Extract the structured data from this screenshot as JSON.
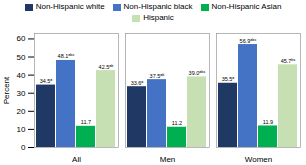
{
  "chart_data": {
    "type": "bar",
    "categories": [
      "All",
      "Men",
      "Women"
    ],
    "series": [
      {
        "name": "Non-Hispanic white",
        "color": "#1f3864",
        "values": [
          34.5,
          33.6,
          35.5
        ],
        "value_labels": [
          "34.5ᵃ",
          "33.6ᵃ",
          "35.5ᵃ"
        ]
      },
      {
        "name": "Non-Hispanic black",
        "color": "#4472c4",
        "values": [
          48.1,
          37.5,
          56.9
        ],
        "value_labels": [
          "48.1ᵃᵇᶜ",
          "37.5ᵃᵇ",
          "56.9ᵃᵇᶜ"
        ]
      },
      {
        "name": "Non-Hispanic Asian",
        "color": "#00b050",
        "values": [
          11.7,
          11.2,
          11.9
        ],
        "value_labels": [
          "11.7",
          "11.2",
          "11.9"
        ]
      },
      {
        "name": "Hispanic",
        "color": "#c6e0b4",
        "values": [
          42.5,
          39.0,
          45.7
        ],
        "value_labels": [
          "42.5ᵃᵇ",
          "39.0ᵃᵇᶜ",
          "45.7ᵇᶜ"
        ]
      }
    ],
    "ylabel": "Percent",
    "ylim": [
      0,
      63
    ],
    "yticks": [
      0,
      10,
      20,
      30,
      40,
      50,
      60
    ],
    "data_labels": true,
    "legend": "top",
    "grid": false
  }
}
